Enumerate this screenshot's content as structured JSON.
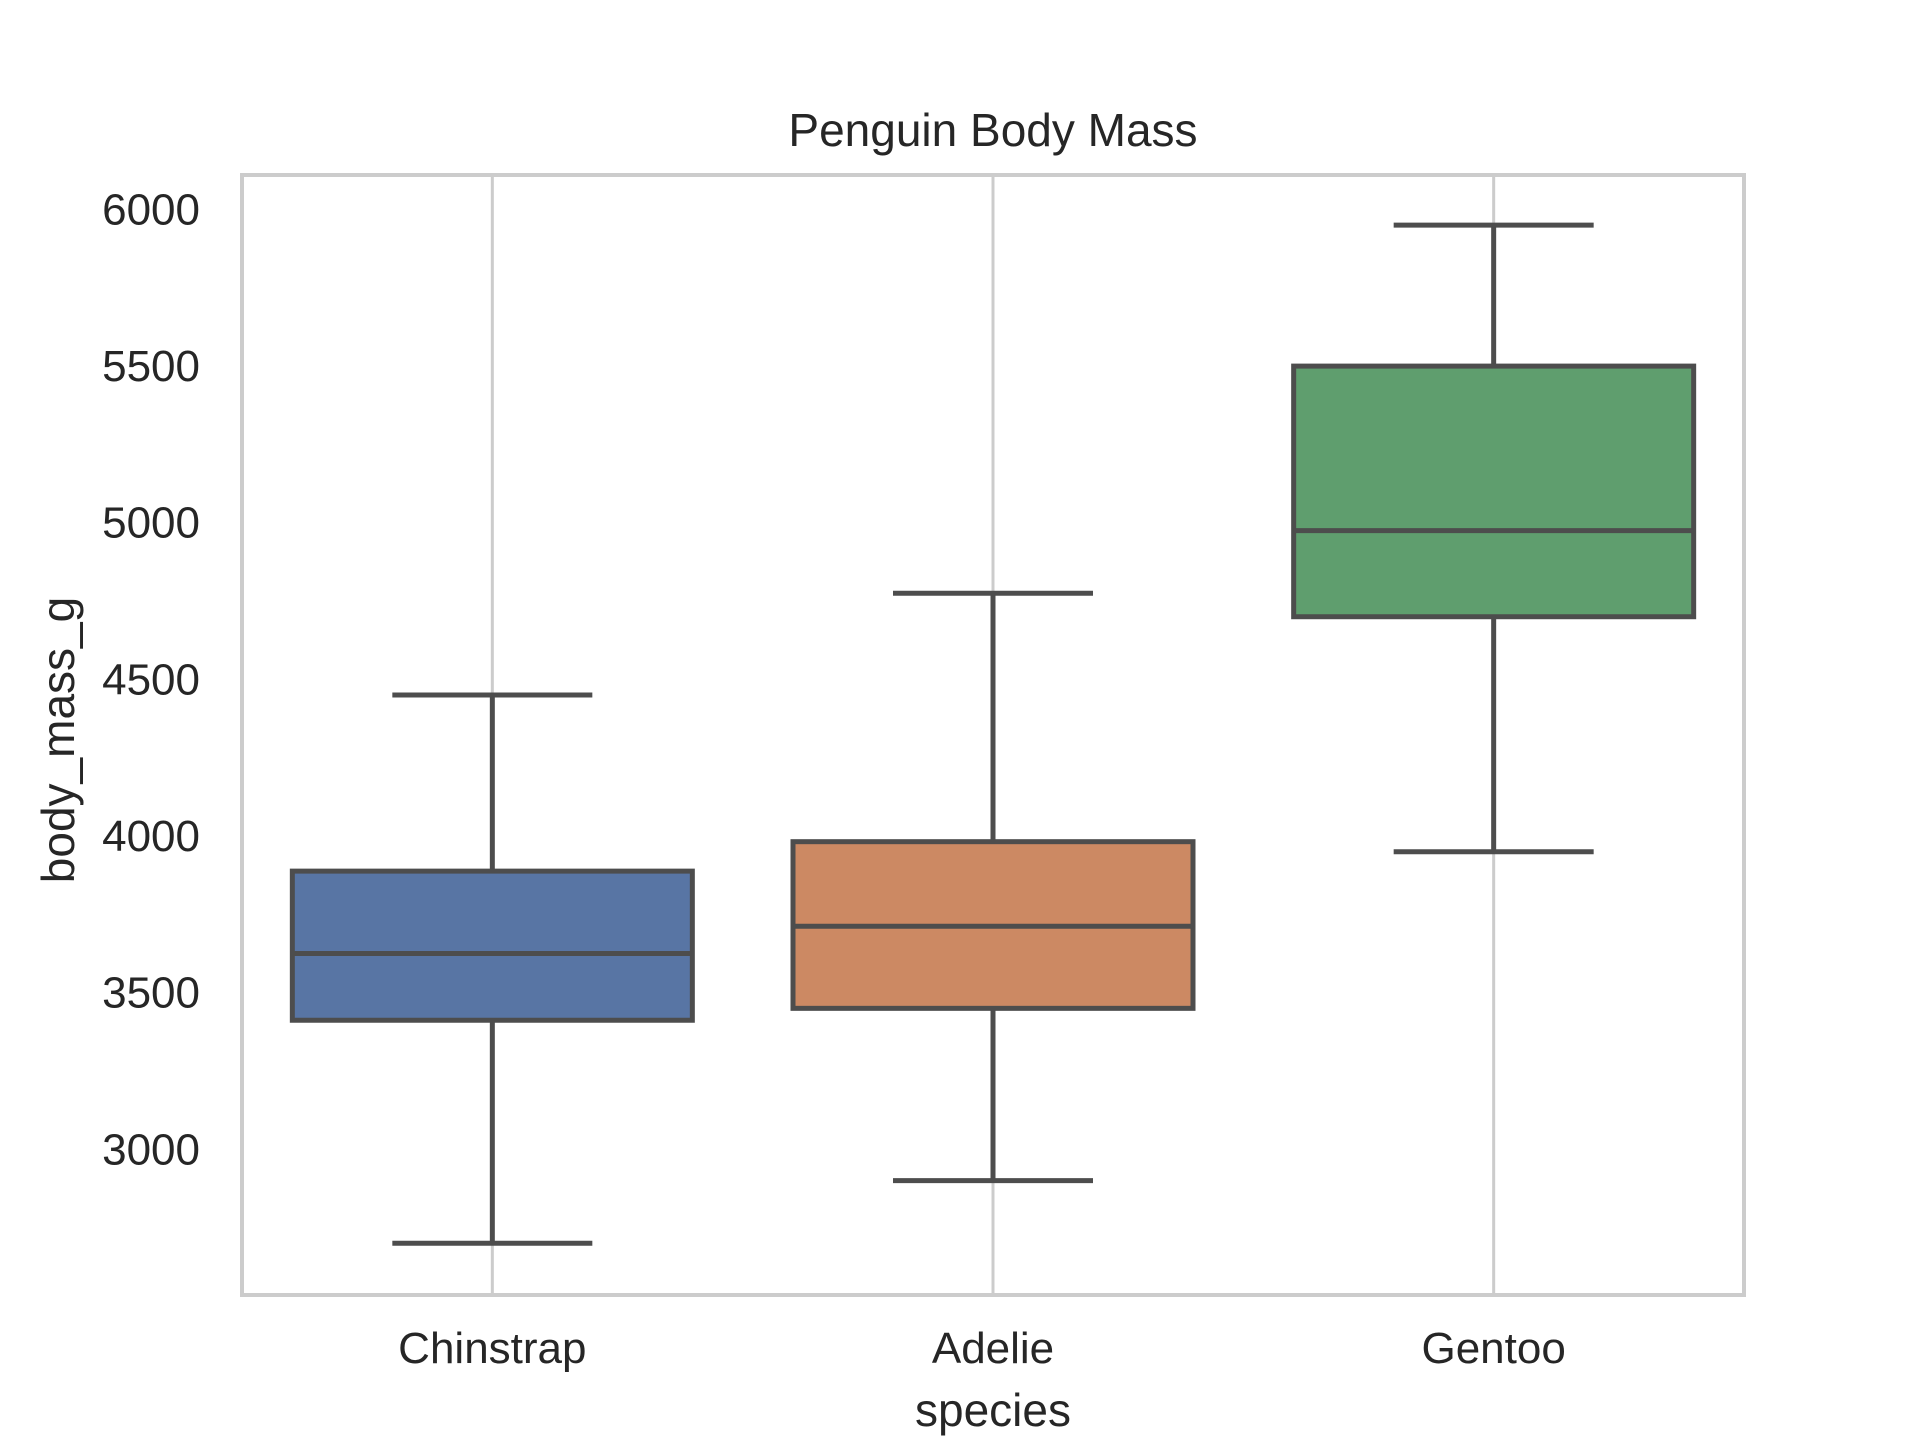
{
  "chart_data": {
    "type": "box",
    "title": "Penguin Body Mass",
    "xlabel": "species",
    "ylabel": "body_mass_g",
    "categories": [
      "Chinstrap",
      "Adelie",
      "Gentoo"
    ],
    "boxes": [
      {
        "category": "Chinstrap",
        "whisker_low": 2700,
        "q1": 3412,
        "median": 3625,
        "q3": 3888,
        "whisker_high": 4450,
        "color": "#5875a4"
      },
      {
        "category": "Adelie",
        "whisker_low": 2900,
        "q1": 3450,
        "median": 3712,
        "q3": 3982,
        "whisker_high": 4775,
        "color": "#cc8963"
      },
      {
        "category": "Gentoo",
        "whisker_low": 3950,
        "q1": 4700,
        "median": 4975,
        "q3": 5500,
        "whisker_high": 5950,
        "color": "#5f9e6e"
      }
    ],
    "ylim": [
      2535,
      6110
    ],
    "yticks": [
      3000,
      3500,
      4000,
      4500,
      5000,
      5500,
      6000
    ],
    "grid": true,
    "colors": {
      "grid": "#cccccc",
      "spine": "#cccccc",
      "box_edge": "#4d4d4d",
      "text": "#262626"
    }
  }
}
